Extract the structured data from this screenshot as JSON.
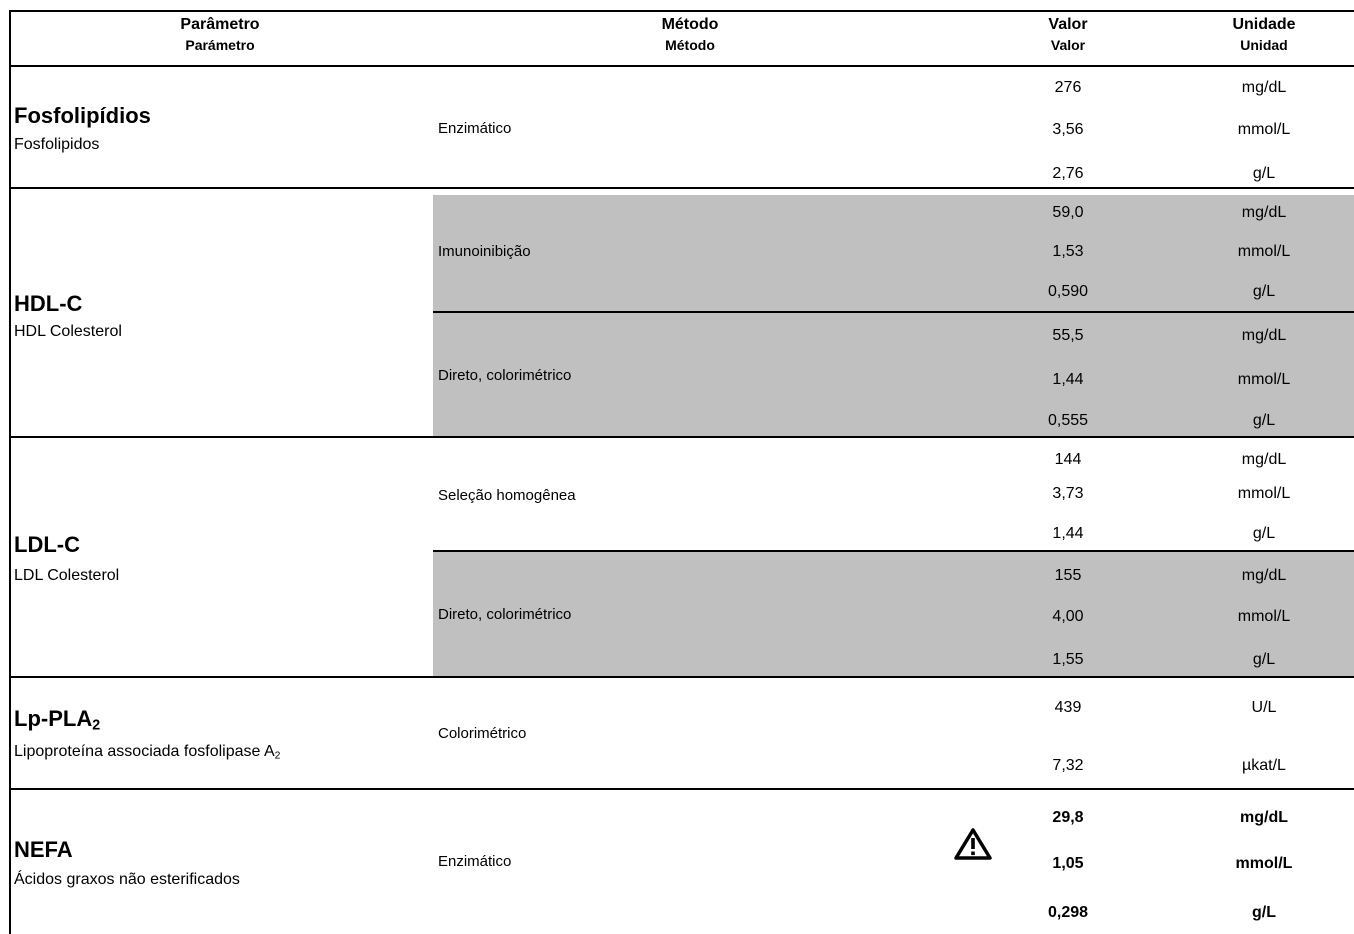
{
  "header": {
    "parametro": "Parâmetro",
    "parametro_es": "Parámetro",
    "metodo": "Método",
    "metodo_es": "Método",
    "valor": "Valor",
    "valor_es": "Valor",
    "unidade": "Unidade",
    "unidade_es": "Unidad"
  },
  "rows": {
    "fosfolipidios": {
      "name": "Fosfolipídios",
      "sub": "Fosfolipidos",
      "methods": [
        {
          "method": "Enzimático",
          "values": [
            "276",
            "3,56",
            "2,76"
          ],
          "units": [
            "mg/dL",
            "mmol/L",
            "g/L"
          ]
        }
      ]
    },
    "hdl": {
      "name": "HDL-C",
      "sub": "HDL Colesterol",
      "methods": [
        {
          "method": "Imunoinibição",
          "values": [
            "59,0",
            "1,53",
            "0,590"
          ],
          "units": [
            "mg/dL",
            "mmol/L",
            "g/L"
          ]
        },
        {
          "method": "Direto, colorimétrico",
          "values": [
            "55,5",
            "1,44",
            "0,555"
          ],
          "units": [
            "mg/dL",
            "mmol/L",
            "g/L"
          ]
        }
      ]
    },
    "ldl": {
      "name": "LDL-C",
      "sub": "LDL Colesterol",
      "methods": [
        {
          "method": "Seleção homogênea",
          "values": [
            "144",
            "3,73",
            "1,44"
          ],
          "units": [
            "mg/dL",
            "mmol/L",
            "g/L"
          ]
        },
        {
          "method": "Direto, colorimétrico",
          "values": [
            "155",
            "4,00",
            "1,55"
          ],
          "units": [
            "mg/dL",
            "mmol/L",
            "g/L"
          ]
        }
      ]
    },
    "lppla2": {
      "name": "Lp-PLA",
      "name_subscript": "2",
      "sub": "Lipoproteína associada fosfolipase A",
      "sub_subscript": "2",
      "methods": [
        {
          "method": "Colorimétrico",
          "values": [
            "439",
            "7,32"
          ],
          "units": [
            "U/L",
            "µkat/L"
          ]
        }
      ]
    },
    "nefa": {
      "name": "NEFA",
      "sub": "Ácidos graxos não esterificados",
      "warning_icon": "warning-triangle-icon",
      "methods": [
        {
          "method": "Enzimático",
          "values": [
            "29,8",
            "1,05",
            "0,298"
          ],
          "units": [
            "mg/dL",
            "mmol/L",
            "g/L"
          ]
        }
      ]
    }
  },
  "colors": {
    "shade": "#c0c0c0",
    "border": "#000000"
  }
}
